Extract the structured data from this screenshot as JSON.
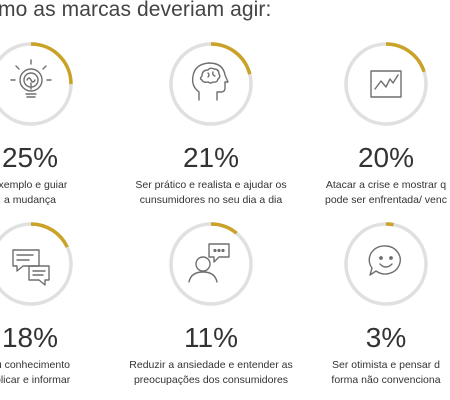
{
  "title": "mo as marcas deveriam agir:",
  "colors": {
    "accent": "#c9a227",
    "ring_track": "#e0e0e0",
    "icon": "#6f6f6f"
  },
  "cards": [
    {
      "icon": "lightbulb-icon",
      "percent": "25%",
      "value": 25,
      "line1": "exemplo e guiar",
      "line2": "a mudança"
    },
    {
      "icon": "head-brain-icon",
      "percent": "21%",
      "value": 21,
      "line1": "Ser prático e realista e ajudar os",
      "line2": "cunsumidores  no seu dia a dia"
    },
    {
      "icon": "line-chart-icon",
      "percent": "20%",
      "value": 20,
      "line1": "Atacar a crise e mostrar q",
      "line2": "pode ser enfrentada/  venc"
    },
    {
      "icon": "chat-bubbles-icon",
      "percent": "18%",
      "value": 18,
      "line1": "eu conhecimento",
      "line2": "xplicar e informar"
    },
    {
      "icon": "person-speech-icon",
      "percent": "11%",
      "value": 11,
      "line1": "Reduzir a ansiedade e entender as",
      "line2": "preocupações  dos consumidores"
    },
    {
      "icon": "smiley-bubble-icon",
      "percent": "3%",
      "value": 3,
      "line1": "Ser otimista e pensar d",
      "line2": "forma não convenciona"
    }
  ]
}
